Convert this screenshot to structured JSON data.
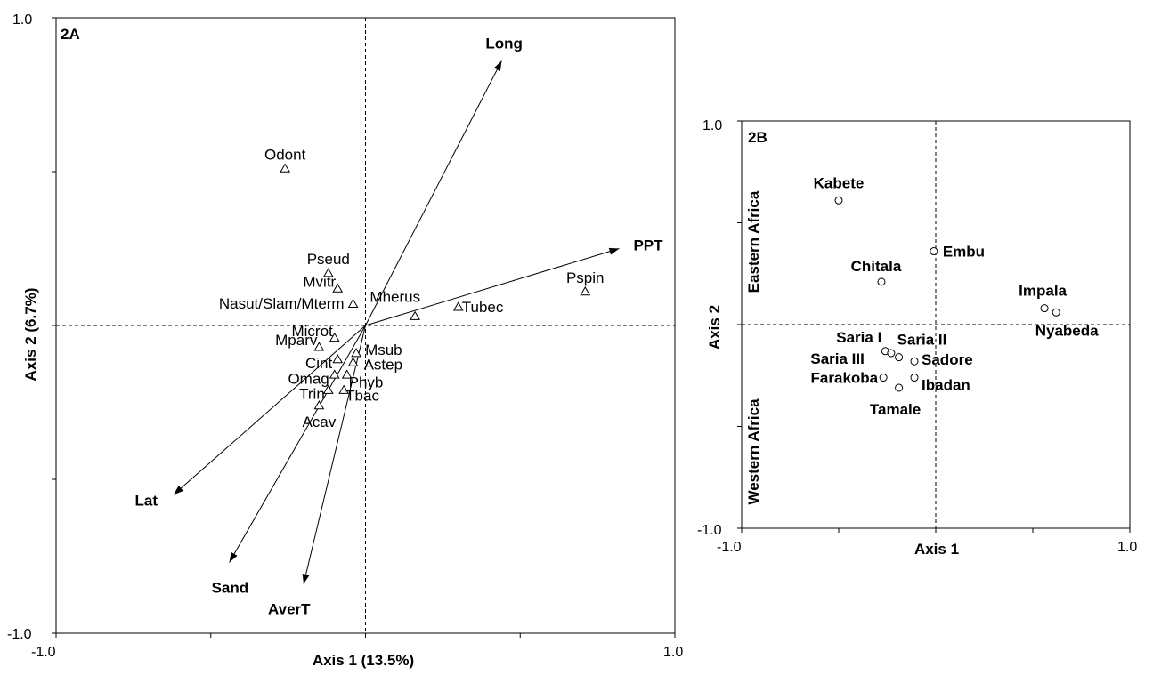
{
  "chart_data": [
    {
      "panel": "2A",
      "type": "scatter",
      "xlabel": "Axis 1 (13.5%)",
      "ylabel": "Axis 2 (6.7%)",
      "xlim": [
        -1.0,
        1.0
      ],
      "ylim": [
        -1.0,
        1.0
      ],
      "xtick_labels": [
        "-1.0",
        "1.0"
      ],
      "ytick_labels": [
        "1.0",
        "-1.0"
      ],
      "xticks": [
        -1.0,
        -0.5,
        0,
        0.5,
        1.0
      ],
      "yticks": [
        -1.0,
        -0.5,
        0,
        0.5,
        1.0
      ],
      "species": [
        {
          "label": "Odont",
          "x": -0.26,
          "y": 0.51
        },
        {
          "label": "Pseud",
          "x": -0.12,
          "y": 0.17
        },
        {
          "label": "Mvitr",
          "x": -0.09,
          "y": 0.12
        },
        {
          "label": "Nasut/Slam/Mterm",
          "x": -0.04,
          "y": 0.07
        },
        {
          "label": "Mherus",
          "x": 0.16,
          "y": 0.03
        },
        {
          "label": "Tubec",
          "x": 0.3,
          "y": 0.06
        },
        {
          "label": "Pspin",
          "x": 0.71,
          "y": 0.11
        },
        {
          "label": "Microt",
          "x": -0.1,
          "y": -0.04
        },
        {
          "label": "Mparv",
          "x": -0.15,
          "y": -0.07
        },
        {
          "label": "Msub",
          "x": -0.03,
          "y": -0.09
        },
        {
          "label": "Cint",
          "x": -0.09,
          "y": -0.11
        },
        {
          "label": "Astep",
          "x": -0.04,
          "y": -0.12
        },
        {
          "label": "Omag",
          "x": -0.1,
          "y": -0.16
        },
        {
          "label": "Phyb",
          "x": -0.06,
          "y": -0.16
        },
        {
          "label": "Trin",
          "x": -0.12,
          "y": -0.21
        },
        {
          "label": "Tbac",
          "x": -0.07,
          "y": -0.21
        },
        {
          "label": "Acav",
          "x": -0.15,
          "y": -0.26
        }
      ],
      "vectors": [
        {
          "label": "Long",
          "x": 0.44,
          "y": 0.86
        },
        {
          "label": "PPT",
          "x": 0.82,
          "y": 0.25
        },
        {
          "label": "Lat",
          "x": -0.62,
          "y": -0.55
        },
        {
          "label": "Sand",
          "x": -0.44,
          "y": -0.77
        },
        {
          "label": "AverT",
          "x": -0.2,
          "y": -0.84
        }
      ]
    },
    {
      "panel": "2B",
      "type": "scatter",
      "xlabel": "Axis 1",
      "ylabel": "Axis 2",
      "xlim": [
        -1.0,
        1.0
      ],
      "ylim": [
        -1.0,
        1.0
      ],
      "xtick_labels": [
        "-1.0",
        "1.0"
      ],
      "ytick_labels": [
        "1.0",
        "-1.0"
      ],
      "xticks": [
        -1.0,
        -0.5,
        0,
        0.5,
        1.0
      ],
      "yticks": [
        -1.0,
        -0.5,
        0,
        0.5,
        1.0
      ],
      "region_labels": {
        "top": "Eastern Africa",
        "bottom": "Western Africa"
      },
      "sites": [
        {
          "label": "Kabete",
          "x": -0.5,
          "y": 0.61
        },
        {
          "label": "Embu",
          "x": -0.01,
          "y": 0.36
        },
        {
          "label": "Chitala",
          "x": -0.28,
          "y": 0.21
        },
        {
          "label": "Impala",
          "x": 0.56,
          "y": 0.08
        },
        {
          "label": "Nyabeda",
          "x": 0.62,
          "y": 0.06
        },
        {
          "label": "Saria I",
          "x": -0.26,
          "y": -0.13
        },
        {
          "label": "Saria II",
          "x": -0.19,
          "y": -0.16
        },
        {
          "label": "Saria III",
          "x": -0.23,
          "y": -0.14
        },
        {
          "label": "Sadore",
          "x": -0.11,
          "y": -0.18
        },
        {
          "label": "Ibadan",
          "x": -0.11,
          "y": -0.26
        },
        {
          "label": "Farakoba",
          "x": -0.27,
          "y": -0.26
        },
        {
          "label": "Tamale",
          "x": -0.19,
          "y": -0.31
        }
      ]
    }
  ]
}
